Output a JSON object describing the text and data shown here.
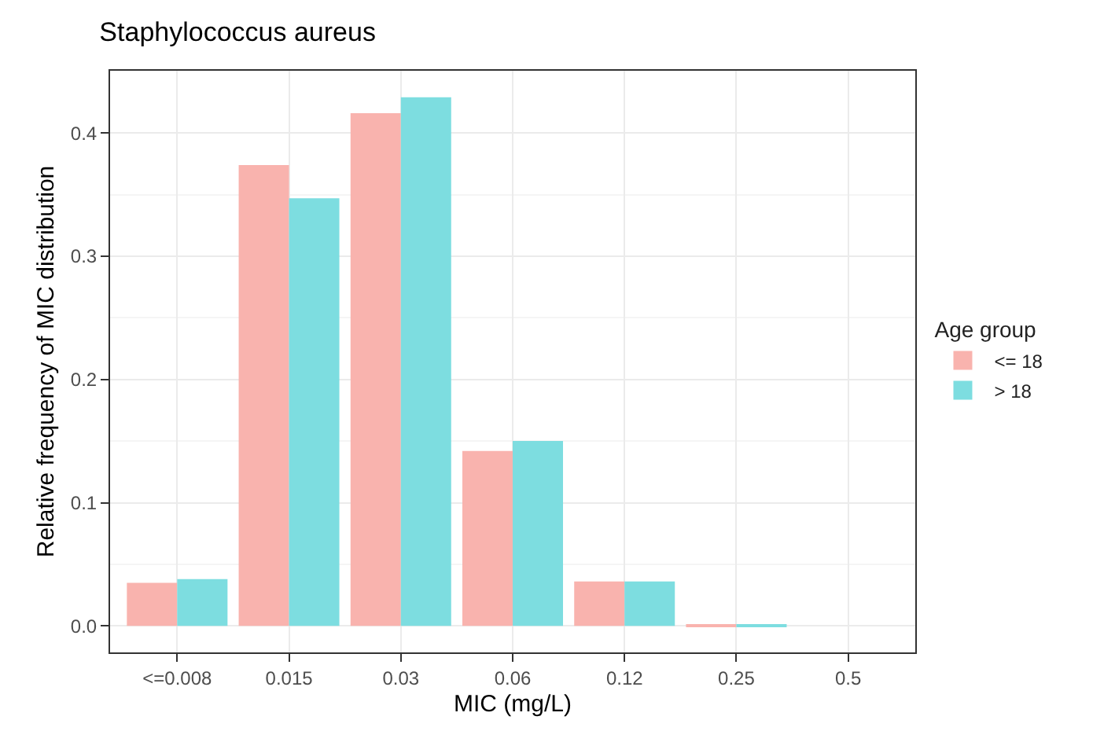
{
  "chart_data": {
    "type": "bar",
    "title": "Staphylococcus aureus",
    "xlabel": "MIC (mg/L)",
    "ylabel": "Relative frequency of MIC distribution",
    "legend_title": "Age group",
    "categories": [
      "<=0.008",
      "0.015",
      "0.03",
      "0.06",
      "0.12",
      "0.25",
      "0.5"
    ],
    "series": [
      {
        "name": "<= 18",
        "color": "#f9b3ae",
        "values": [
          0.035,
          0.374,
          0.416,
          0.142,
          0.036,
          0.0005,
          0
        ]
      },
      {
        "name": "> 18",
        "color": "#7ddde0",
        "values": [
          0.038,
          0.347,
          0.429,
          0.15,
          0.036,
          0.001,
          0
        ]
      }
    ],
    "ylim": [
      -0.0215,
      0.4505
    ],
    "yticks": [
      {
        "value": 0,
        "label": "0.0"
      },
      0.1,
      0.2,
      0.3,
      0.4
    ],
    "grid": true,
    "legend": "right"
  }
}
